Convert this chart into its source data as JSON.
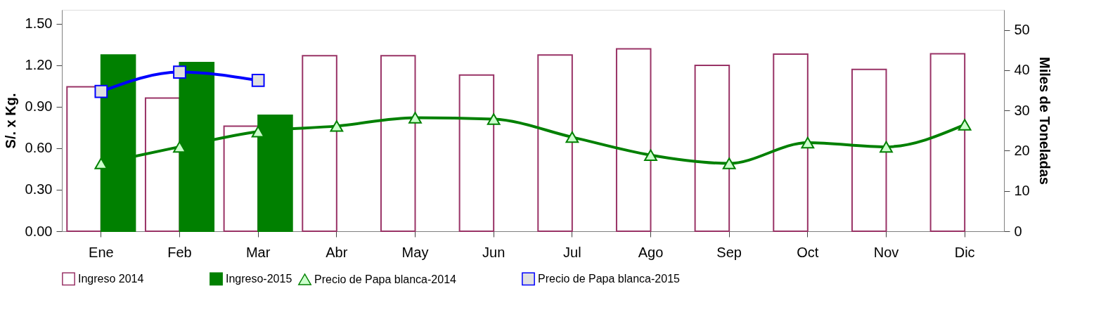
{
  "chart_data": {
    "type": "bar",
    "categories": [
      "Ene",
      "Feb",
      "Mar",
      "Abr",
      "May",
      "Jun",
      "Jul",
      "Ago",
      "Sep",
      "Oct",
      "Nov",
      "Dic"
    ],
    "ylabel": "S/. x Kg.",
    "y2label": "Miles de Toneladas",
    "ylim": [
      0,
      1.6
    ],
    "yticks": [
      {
        "value": 0,
        "label": "0.00"
      },
      {
        "value": 0.3,
        "label": "0.30"
      },
      {
        "value": 0.6,
        "label": "0.60"
      },
      {
        "value": 0.9,
        "label": "0.90"
      },
      {
        "value": 1.2,
        "label": "1.20"
      },
      {
        "value": 1.5,
        "label": "1.50"
      }
    ],
    "y2lim": [
      0,
      55
    ],
    "y2ticks": [
      0,
      10,
      20,
      30,
      40,
      50
    ],
    "legend": "bottom",
    "grid": false,
    "line_style": "solid",
    "series": [
      {
        "name": "Ingreso 2014",
        "axis": "y2",
        "color": "#993366",
        "values": [
          35.9,
          33.1,
          26.1,
          43.6,
          43.6,
          38.8,
          43.8,
          45.3,
          41.2,
          44.0,
          40.2,
          44.1
        ]
      },
      {
        "name": "Ingreso-2015",
        "axis": "y2",
        "color": "#008000",
        "values": [
          43.8,
          41.9,
          28.8,
          null,
          null,
          null,
          null,
          null,
          null,
          null,
          null,
          null
        ]
      },
      {
        "name": "Precio de Papa blanca-2014",
        "type": "line",
        "marker": "triangle",
        "color": "#008000",
        "values": [
          0.49,
          0.61,
          0.72,
          0.76,
          0.82,
          0.81,
          0.68,
          0.55,
          0.49,
          0.64,
          0.61,
          0.77
        ]
      },
      {
        "name": "Precio de Papa blanca-2015",
        "type": "line",
        "marker": "square",
        "color": "#0000ff",
        "values": [
          1.01,
          1.15,
          1.09,
          null,
          null,
          null,
          null,
          null,
          null,
          null,
          null,
          null
        ]
      }
    ]
  }
}
